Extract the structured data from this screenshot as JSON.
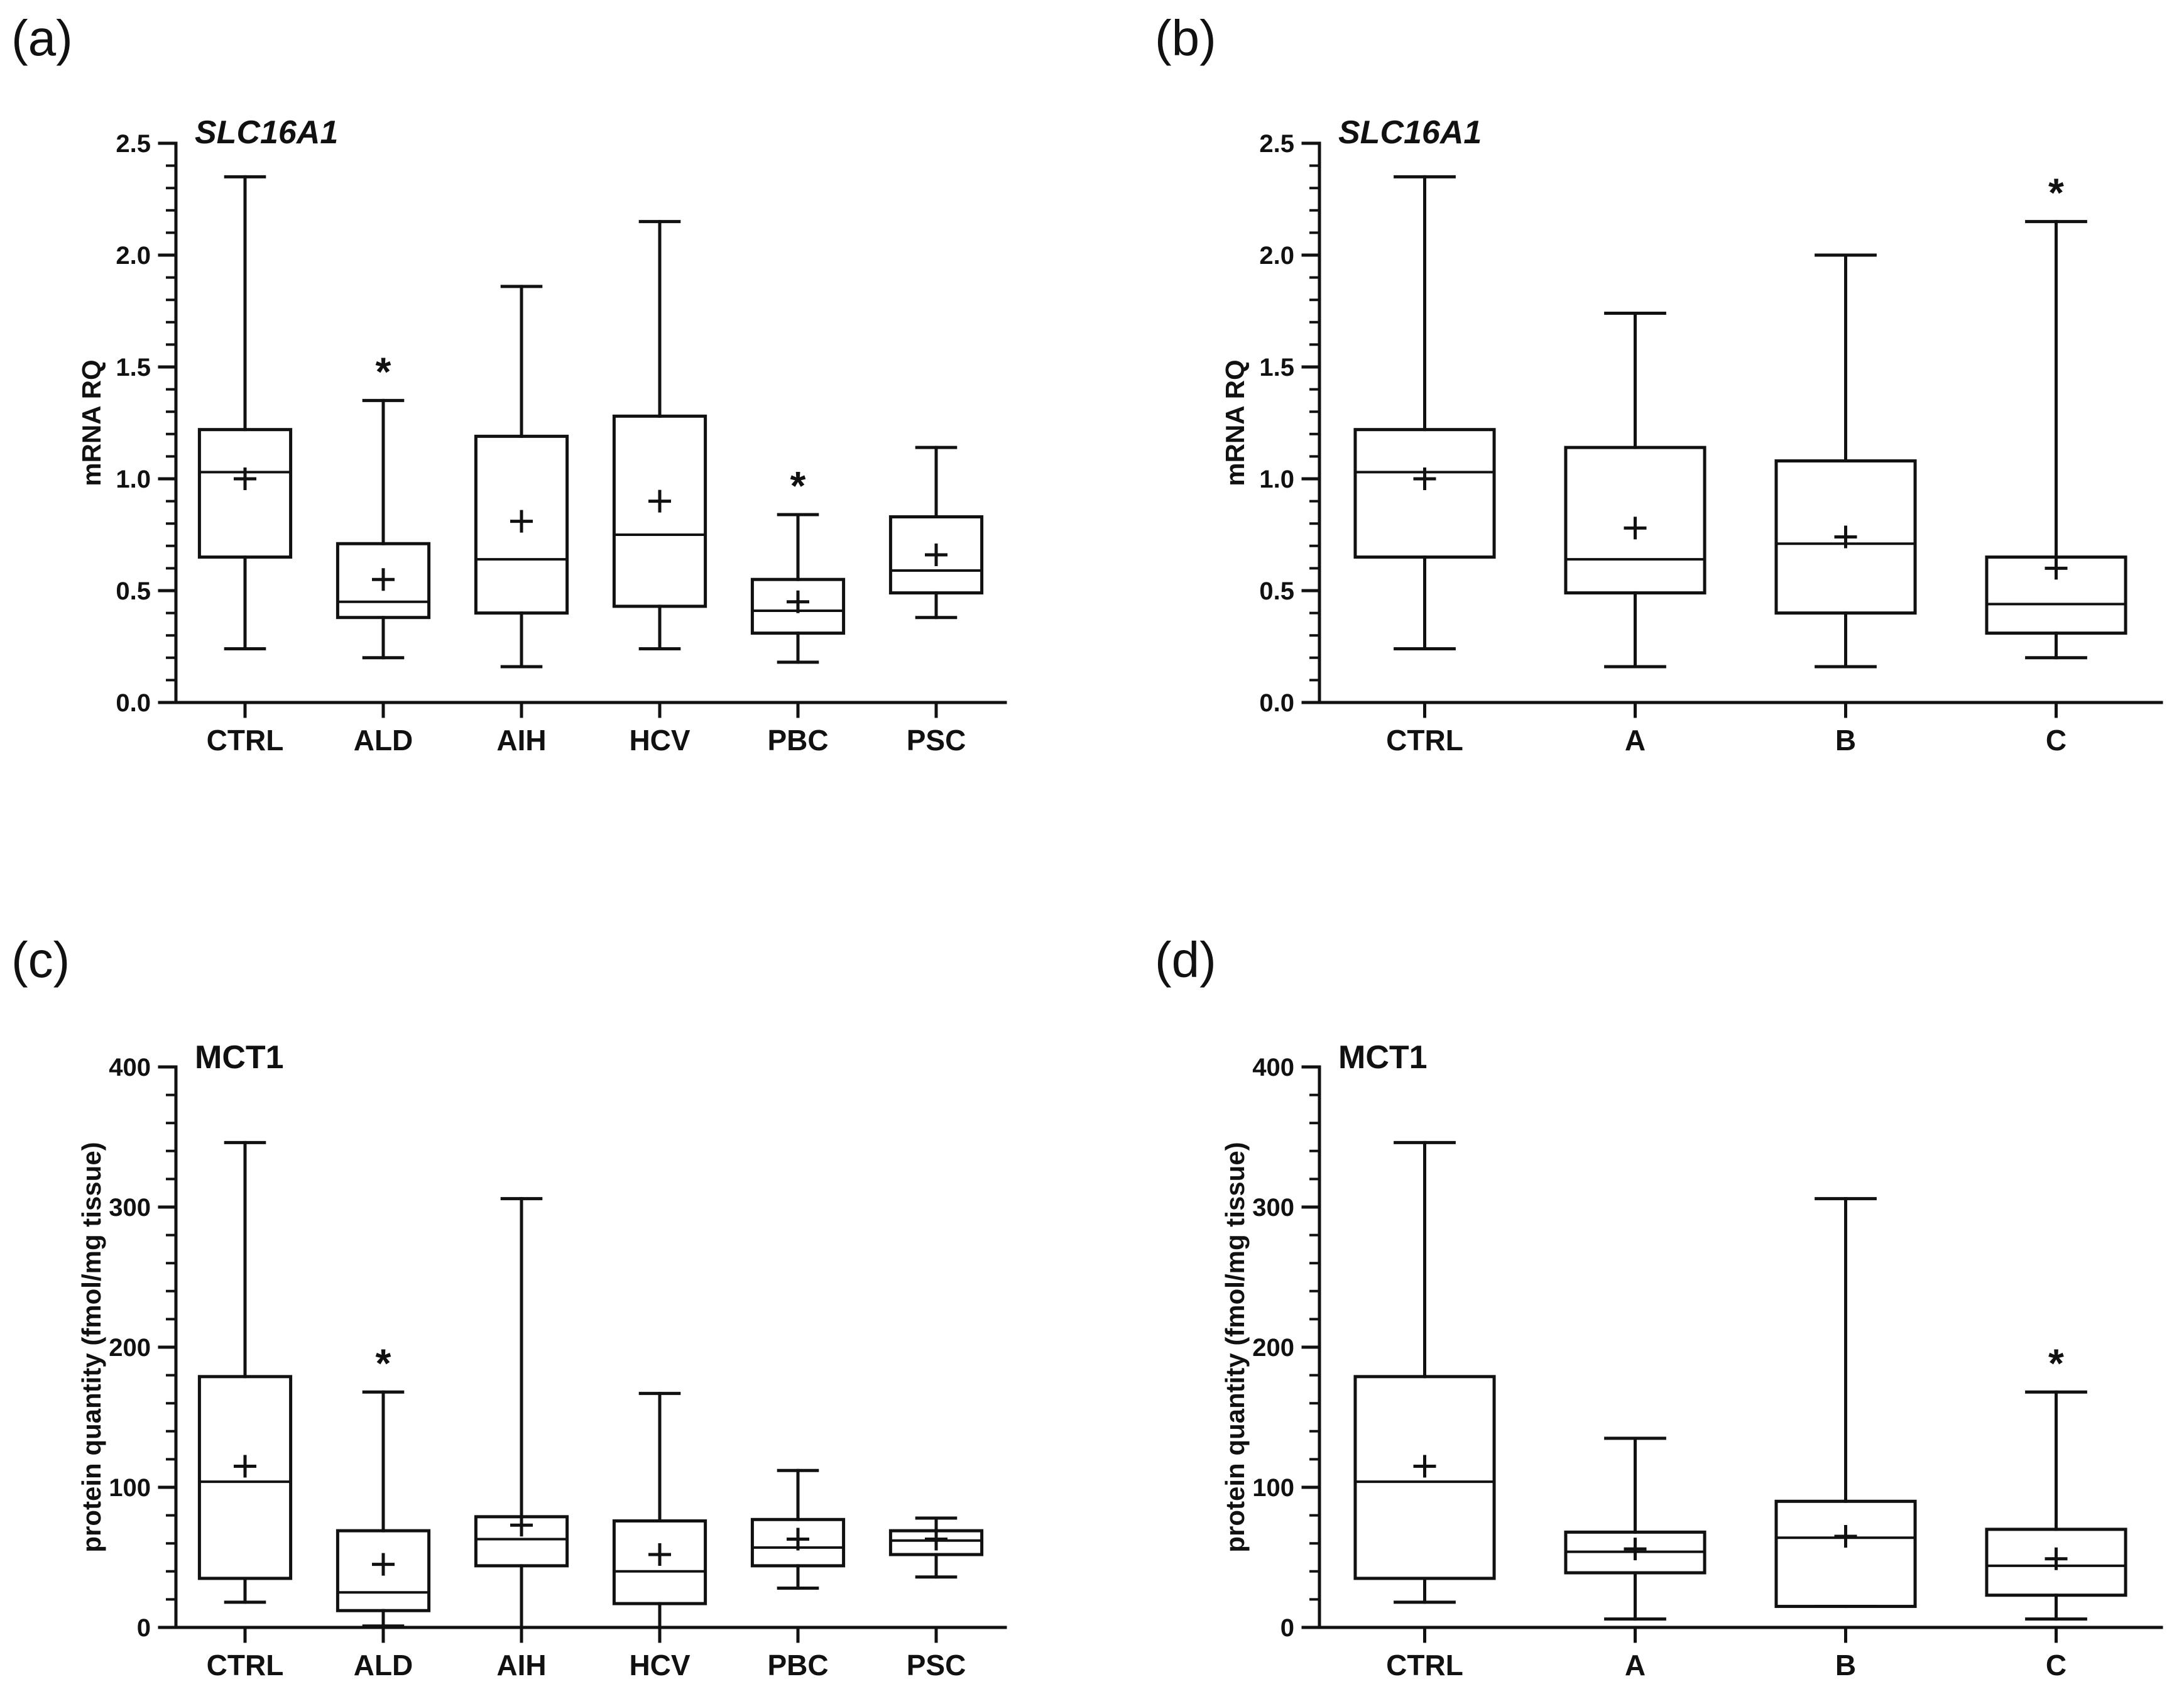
{
  "chart_data": [
    {
      "panel": "(a)",
      "type": "box",
      "title": "SLC16A1",
      "title_italic": true,
      "ylabel": "mRNA RQ",
      "xlabel": "",
      "ylim": [
        0,
        2.5
      ],
      "yticks": [
        "0.0",
        "0.5",
        "1.0",
        "1.5",
        "2.0",
        "2.5"
      ],
      "ytick_values": [
        0,
        0.5,
        1.0,
        1.5,
        2.0,
        2.5
      ],
      "minor_per_major": 5,
      "categories": [
        "CTRL",
        "ALD",
        "AIH",
        "HCV",
        "PBC",
        "PSC"
      ],
      "boxes": [
        {
          "min": 0.24,
          "q1": 0.65,
          "median": 1.03,
          "q3": 1.22,
          "max": 2.35,
          "mean": 1.0,
          "sig": ""
        },
        {
          "min": 0.2,
          "q1": 0.38,
          "median": 0.45,
          "q3": 0.71,
          "max": 1.35,
          "mean": 0.55,
          "sig": "*"
        },
        {
          "min": 0.16,
          "q1": 0.4,
          "median": 0.64,
          "q3": 1.19,
          "max": 1.86,
          "mean": 0.81,
          "sig": ""
        },
        {
          "min": 0.24,
          "q1": 0.43,
          "median": 0.75,
          "q3": 1.28,
          "max": 2.15,
          "mean": 0.9,
          "sig": ""
        },
        {
          "min": 0.18,
          "q1": 0.31,
          "median": 0.41,
          "q3": 0.55,
          "max": 0.84,
          "mean": 0.45,
          "sig": "*"
        },
        {
          "min": 0.38,
          "q1": 0.49,
          "median": 0.59,
          "q3": 0.83,
          "max": 1.14,
          "mean": 0.66,
          "sig": ""
        }
      ]
    },
    {
      "panel": "(b)",
      "type": "box",
      "title": "SLC16A1",
      "title_italic": true,
      "ylabel": "mRNA RQ",
      "xlabel": "",
      "ylim": [
        0,
        2.5
      ],
      "yticks": [
        "0.0",
        "0.5",
        "1.0",
        "1.5",
        "2.0",
        "2.5"
      ],
      "ytick_values": [
        0,
        0.5,
        1.0,
        1.5,
        2.0,
        2.5
      ],
      "minor_per_major": 5,
      "categories": [
        "CTRL",
        "A",
        "B",
        "C"
      ],
      "boxes": [
        {
          "min": 0.24,
          "q1": 0.65,
          "median": 1.03,
          "q3": 1.22,
          "max": 2.35,
          "mean": 1.0,
          "sig": ""
        },
        {
          "min": 0.16,
          "q1": 0.49,
          "median": 0.64,
          "q3": 1.14,
          "max": 1.74,
          "mean": 0.78,
          "sig": ""
        },
        {
          "min": 0.16,
          "q1": 0.4,
          "median": 0.71,
          "q3": 1.08,
          "max": 2.0,
          "mean": 0.74,
          "sig": ""
        },
        {
          "min": 0.2,
          "q1": 0.31,
          "median": 0.44,
          "q3": 0.65,
          "max": 2.15,
          "mean": 0.6,
          "sig": "*"
        }
      ]
    },
    {
      "panel": "(c)",
      "type": "box",
      "title": "MCT1",
      "title_italic": false,
      "ylabel": "protein quantity (fmol/mg tissue)",
      "xlabel": "",
      "ylim": [
        0,
        400
      ],
      "yticks": [
        "0",
        "100",
        "200",
        "300",
        "400"
      ],
      "ytick_values": [
        0,
        100,
        200,
        300,
        400
      ],
      "minor_per_major": 5,
      "categories": [
        "CTRL",
        "ALD",
        "AIH",
        "HCV",
        "PBC",
        "PSC"
      ],
      "boxes": [
        {
          "min": 18,
          "q1": 35,
          "median": 104,
          "q3": 179,
          "max": 346,
          "mean": 115,
          "sig": ""
        },
        {
          "min": 1,
          "q1": 12,
          "median": 25,
          "q3": 69,
          "max": 168,
          "mean": 45,
          "sig": "*"
        },
        {
          "min": 0,
          "q1": 44,
          "median": 63,
          "q3": 79,
          "max": 306,
          "mean": 73,
          "sig": ""
        },
        {
          "min": 0,
          "q1": 17,
          "median": 40,
          "q3": 76,
          "max": 167,
          "mean": 52,
          "sig": ""
        },
        {
          "min": 28,
          "q1": 44,
          "median": 57,
          "q3": 77,
          "max": 112,
          "mean": 63,
          "sig": ""
        },
        {
          "min": 36,
          "q1": 52,
          "median": 62,
          "q3": 69,
          "max": 78,
          "mean": 63,
          "sig": ""
        }
      ]
    },
    {
      "panel": "(d)",
      "type": "box",
      "title": "MCT1",
      "title_italic": false,
      "ylabel": "protein quantity (fmol/mg tissue)",
      "xlabel": "",
      "ylim": [
        0,
        400
      ],
      "yticks": [
        "0",
        "100",
        "200",
        "300",
        "400"
      ],
      "ytick_values": [
        0,
        100,
        200,
        300,
        400
      ],
      "minor_per_major": 5,
      "categories": [
        "CTRL",
        "A",
        "B",
        "C"
      ],
      "boxes": [
        {
          "min": 18,
          "q1": 35,
          "median": 104,
          "q3": 179,
          "max": 346,
          "mean": 115,
          "sig": ""
        },
        {
          "min": 6,
          "q1": 39,
          "median": 54,
          "q3": 68,
          "max": 135,
          "mean": 56,
          "sig": ""
        },
        {
          "min": 15,
          "q1": 15,
          "median": 64,
          "q3": 90,
          "max": 306,
          "mean": 65,
          "sig": ""
        },
        {
          "min": 6,
          "q1": 23,
          "median": 44,
          "q3": 70,
          "max": 168,
          "mean": 49,
          "sig": "*"
        }
      ]
    }
  ],
  "colors": {
    "ink": "#111111",
    "background": "#ffffff"
  }
}
